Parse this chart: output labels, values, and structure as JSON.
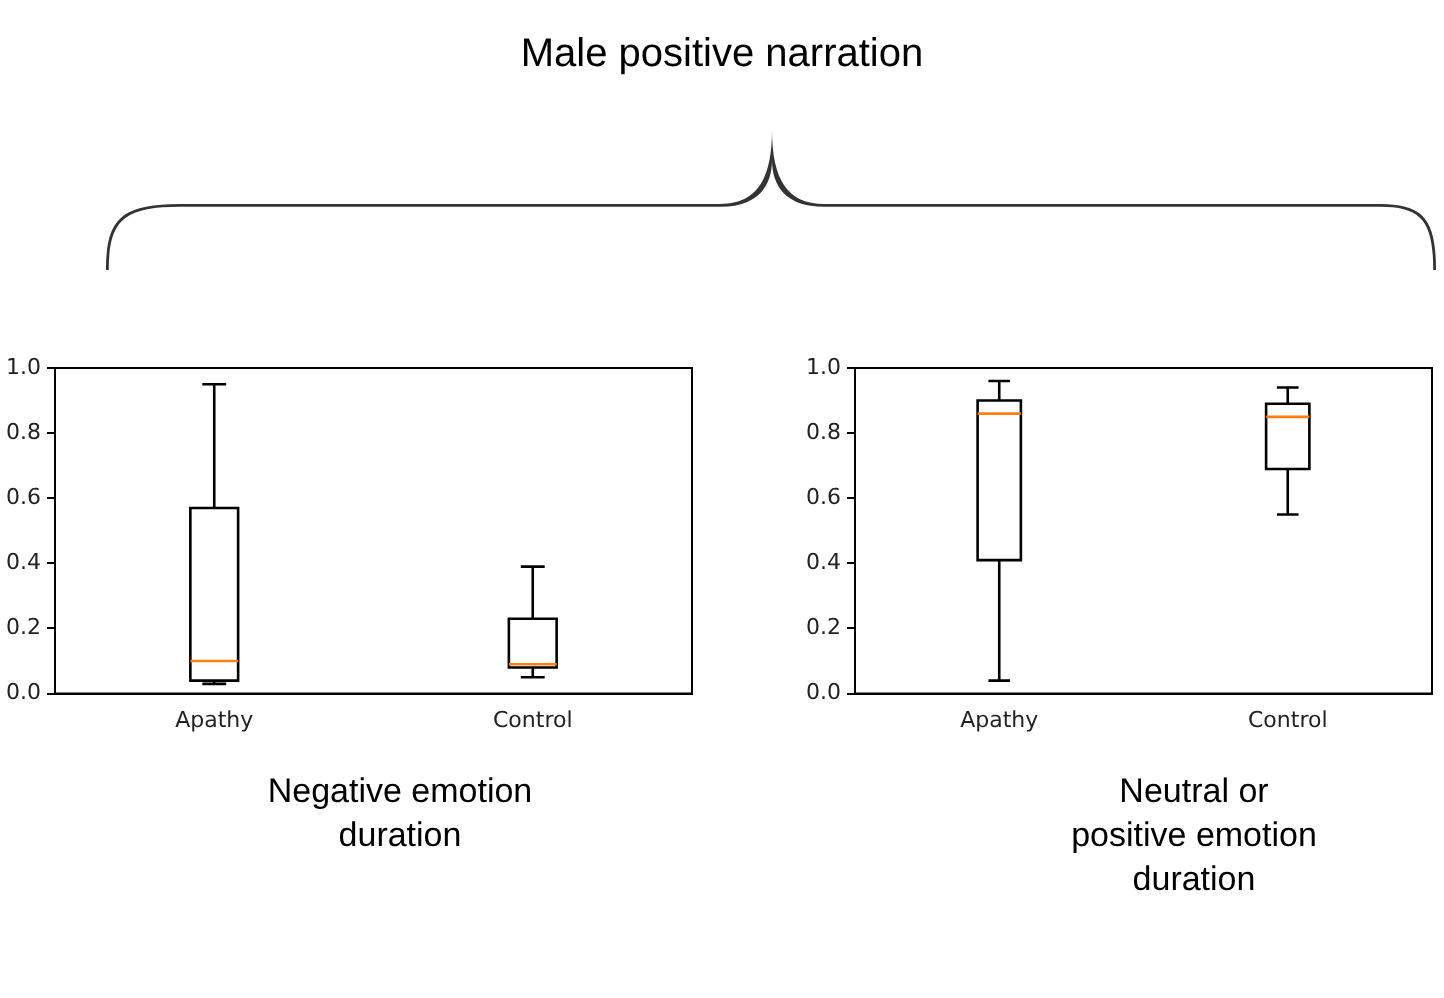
{
  "chart_data": [
    {
      "type": "box",
      "annotations": [
        "Male positive narration"
      ],
      "xlabel": "Negative emotion duration",
      "categories": [
        "Apathy",
        "Control"
      ],
      "boxes": [
        {
          "low": 0.03,
          "q1": 0.04,
          "median": 0.1,
          "q3": 0.57,
          "high": 0.95
        },
        {
          "low": 0.05,
          "q1": 0.08,
          "median": 0.09,
          "q3": 0.23,
          "high": 0.39
        }
      ],
      "ylim": [
        0,
        1
      ],
      "yticks": [
        {
          "value": 0,
          "label": "0.0"
        },
        {
          "value": 0.2,
          "label": "0.2"
        },
        {
          "value": 0.4,
          "label": "0.4"
        },
        {
          "value": 0.6,
          "label": "0.6"
        },
        {
          "value": 0.8,
          "label": "0.8"
        },
        {
          "value": 1,
          "label": "1.0"
        }
      ]
    },
    {
      "type": "box",
      "xlabel": "Neutral or positive emotion duration",
      "categories": [
        "Apathy",
        "Control"
      ],
      "boxes": [
        {
          "low": 0.04,
          "q1": 0.41,
          "median": 0.86,
          "q3": 0.9,
          "high": 0.96
        },
        {
          "low": 0.55,
          "q1": 0.69,
          "median": 0.85,
          "q3": 0.89,
          "high": 0.94
        }
      ],
      "ylim": [
        0,
        1
      ],
      "yticks": [
        {
          "value": 0,
          "label": "0.0"
        },
        {
          "value": 0.2,
          "label": "0.2"
        },
        {
          "value": 0.4,
          "label": "0.4"
        },
        {
          "value": 0.6,
          "label": "0.6"
        },
        {
          "value": 0.8,
          "label": "0.8"
        },
        {
          "value": 1,
          "label": "1.0"
        }
      ]
    }
  ]
}
